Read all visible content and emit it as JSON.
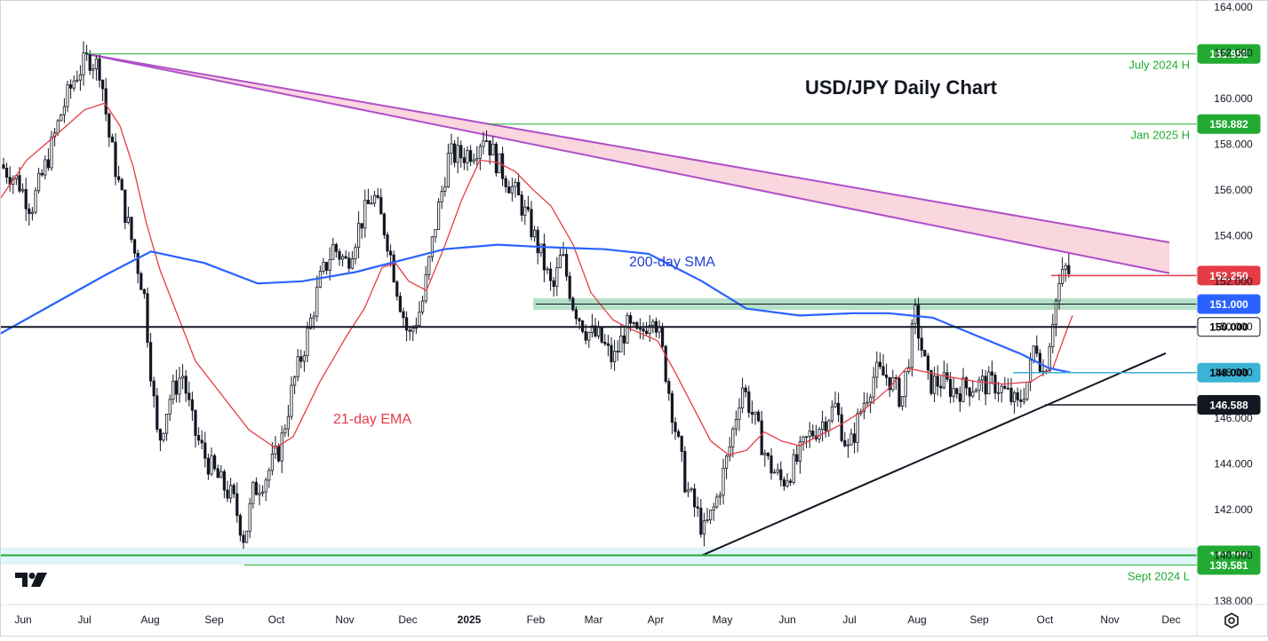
{
  "chart_data": {
    "type": "candlestick",
    "title": "USD/JPY Daily Chart",
    "ylim": [
      138,
      164
    ],
    "y_ticks": [
      "164.000",
      "162.000",
      "160.000",
      "158.000",
      "156.000",
      "154.000",
      "152.000",
      "150.000",
      "148.000",
      "146.000",
      "144.000",
      "142.000",
      "140.000",
      "138.000"
    ],
    "x_ticks": [
      "Jun",
      "Jul",
      "Aug",
      "Sep",
      "Oct",
      "Nov",
      "Dec",
      "2025",
      "Feb",
      "Mar",
      "Apr",
      "May",
      "Jun",
      "Jul",
      "Aug",
      "Sep",
      "Oct",
      "Nov",
      "Dec"
    ],
    "x_tick_positions": [
      26,
      95,
      169,
      241,
      311,
      388,
      459,
      528,
      603,
      668,
      738,
      813,
      886,
      956,
      1032,
      1102,
      1176,
      1249,
      1318
    ],
    "price_levels": [
      {
        "label": "July 2024 H",
        "value": 161.952,
        "badge": "161.952",
        "color": "#22ab32",
        "text_color": "#ffffff"
      },
      {
        "label": "Jan 2025 H",
        "value": 158.882,
        "badge": "158.882",
        "color": "#22ab32",
        "text_color": "#ffffff"
      },
      {
        "label": "",
        "value": 152.25,
        "badge": "152.250",
        "color": "#e53b45",
        "text_color": "#ffffff"
      },
      {
        "label": "",
        "value": 151.0,
        "badge": "151.000",
        "color": "#2962ff",
        "text_color": "#ffffff"
      },
      {
        "label": "",
        "value": 150.0,
        "badge": "150.000",
        "color": "#ffffff",
        "text_color": "#000000"
      },
      {
        "label": "",
        "value": 148.0,
        "badge": "148.000",
        "color": "#3bb3d6",
        "text_color": "#000000"
      },
      {
        "label": "",
        "value": 146.588,
        "badge": "146.588",
        "color": "#131722",
        "text_color": "#ffffff"
      },
      {
        "label": "",
        "value": 140.0,
        "badge": "140.000",
        "color": "#22ab32",
        "text_color": "#ffffff"
      },
      {
        "label": "Sept 2024 L",
        "value": 139.581,
        "badge": "139.581",
        "color": "#22ab32",
        "text_color": "#ffffff"
      }
    ],
    "annotations": {
      "sma": "200-day SMA",
      "ema": "21-day EMA"
    },
    "close_path": [
      [
        0,
        157.1
      ],
      [
        20,
        156.4
      ],
      [
        35,
        155.2
      ],
      [
        55,
        157.5
      ],
      [
        70,
        159.5
      ],
      [
        85,
        161.0
      ],
      [
        100,
        161.8
      ],
      [
        113,
        161.3
      ],
      [
        122,
        158.5
      ],
      [
        135,
        156.0
      ],
      [
        150,
        153.5
      ],
      [
        162,
        151.5
      ],
      [
        170,
        148.0
      ],
      [
        178,
        144.8
      ],
      [
        190,
        146.8
      ],
      [
        205,
        148.0
      ],
      [
        218,
        145.5
      ],
      [
        232,
        144.2
      ],
      [
        248,
        143.2
      ],
      [
        262,
        142.5
      ],
      [
        275,
        140.7
      ],
      [
        285,
        142.8
      ],
      [
        300,
        143.5
      ],
      [
        315,
        144.7
      ],
      [
        330,
        147.5
      ],
      [
        345,
        149.5
      ],
      [
        360,
        152.0
      ],
      [
        375,
        153.5
      ],
      [
        390,
        152.8
      ],
      [
        405,
        154.5
      ],
      [
        420,
        155.8
      ],
      [
        435,
        154.0
      ],
      [
        448,
        151.5
      ],
      [
        460,
        149.5
      ],
      [
        475,
        151.0
      ],
      [
        490,
        154.5
      ],
      [
        505,
        157.5
      ],
      [
        520,
        157.5
      ],
      [
        535,
        157.8
      ],
      [
        545,
        158.5
      ],
      [
        558,
        157.3
      ],
      [
        570,
        156.5
      ],
      [
        585,
        155.5
      ],
      [
        598,
        154.3
      ],
      [
        610,
        153.0
      ],
      [
        622,
        151.5
      ],
      [
        632,
        153.2
      ],
      [
        645,
        151.0
      ],
      [
        660,
        149.8
      ],
      [
        675,
        149.5
      ],
      [
        690,
        148.5
      ],
      [
        705,
        150.0
      ],
      [
        720,
        149.5
      ],
      [
        735,
        150.8
      ],
      [
        745,
        149.0
      ],
      [
        758,
        146.0
      ],
      [
        772,
        143.0
      ],
      [
        785,
        141.8
      ],
      [
        792,
        141.0
      ],
      [
        805,
        142.2
      ],
      [
        820,
        144.5
      ],
      [
        835,
        147.5
      ],
      [
        850,
        145.8
      ],
      [
        865,
        144.0
      ],
      [
        880,
        143.2
      ],
      [
        895,
        144.0
      ],
      [
        910,
        145.2
      ],
      [
        925,
        145.8
      ],
      [
        940,
        146.5
      ],
      [
        955,
        144.5
      ],
      [
        970,
        146.5
      ],
      [
        985,
        148.0
      ],
      [
        1000,
        147.8
      ],
      [
        1015,
        146.8
      ],
      [
        1030,
        150.5
      ],
      [
        1045,
        147.5
      ],
      [
        1060,
        147.6
      ],
      [
        1075,
        147.2
      ],
      [
        1090,
        147.4
      ],
      [
        1105,
        147.5
      ],
      [
        1120,
        147.5
      ],
      [
        1135,
        147.0
      ],
      [
        1145,
        146.5
      ],
      [
        1158,
        147.8
      ],
      [
        1165,
        149.5
      ],
      [
        1175,
        147.8
      ],
      [
        1185,
        150.5
      ],
      [
        1192,
        151.8
      ],
      [
        1200,
        152.6
      ],
      [
        1207,
        152.0
      ]
    ],
    "sma200_path": [
      [
        0,
        149.7
      ],
      [
        60,
        151.0
      ],
      [
        120,
        152.3
      ],
      [
        170,
        153.3
      ],
      [
        230,
        152.8
      ],
      [
        290,
        151.9
      ],
      [
        340,
        152.0
      ],
      [
        400,
        152.4
      ],
      [
        450,
        152.9
      ],
      [
        500,
        153.4
      ],
      [
        560,
        153.6
      ],
      [
        610,
        153.5
      ],
      [
        680,
        153.4
      ],
      [
        730,
        153.2
      ],
      [
        790,
        152.0
      ],
      [
        840,
        150.8
      ],
      [
        900,
        150.5
      ],
      [
        960,
        150.6
      ],
      [
        1000,
        150.6
      ],
      [
        1050,
        150.4
      ],
      [
        1100,
        149.6
      ],
      [
        1150,
        148.8
      ],
      [
        1180,
        148.2
      ],
      [
        1205,
        148.0
      ]
    ],
    "ema21_path": [
      [
        0,
        155.6
      ],
      [
        30,
        157.3
      ],
      [
        60,
        158.3
      ],
      [
        95,
        159.5
      ],
      [
        118,
        159.8
      ],
      [
        135,
        158.8
      ],
      [
        150,
        157.0
      ],
      [
        165,
        154.5
      ],
      [
        180,
        152.5
      ],
      [
        200,
        150.5
      ],
      [
        220,
        148.5
      ],
      [
        250,
        147.0
      ],
      [
        280,
        145.5
      ],
      [
        310,
        144.7
      ],
      [
        330,
        145.2
      ],
      [
        360,
        147.6
      ],
      [
        390,
        149.6
      ],
      [
        410,
        150.8
      ],
      [
        430,
        152.6
      ],
      [
        445,
        152.8
      ],
      [
        460,
        152.0
      ],
      [
        480,
        151.6
      ],
      [
        500,
        153.5
      ],
      [
        520,
        155.6
      ],
      [
        540,
        157.3
      ],
      [
        560,
        157.2
      ],
      [
        580,
        156.8
      ],
      [
        600,
        156.0
      ],
      [
        620,
        155.3
      ],
      [
        645,
        153.6
      ],
      [
        665,
        151.5
      ],
      [
        690,
        150.3
      ],
      [
        710,
        149.9
      ],
      [
        740,
        149.4
      ],
      [
        760,
        148.0
      ],
      [
        780,
        146.5
      ],
      [
        800,
        145.0
      ],
      [
        820,
        144.4
      ],
      [
        840,
        144.6
      ],
      [
        860,
        145.4
      ],
      [
        880,
        145.0
      ],
      [
        900,
        144.8
      ],
      [
        920,
        145.2
      ],
      [
        945,
        145.7
      ],
      [
        970,
        146.3
      ],
      [
        1000,
        147.3
      ],
      [
        1020,
        148.2
      ],
      [
        1045,
        148.0
      ],
      [
        1070,
        147.8
      ],
      [
        1100,
        147.6
      ],
      [
        1130,
        147.5
      ],
      [
        1160,
        147.6
      ],
      [
        1185,
        148.2
      ],
      [
        1200,
        149.8
      ],
      [
        1207,
        150.5
      ]
    ]
  }
}
